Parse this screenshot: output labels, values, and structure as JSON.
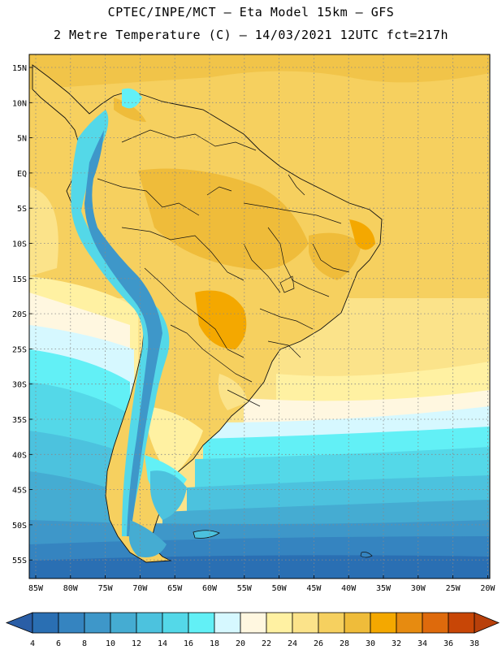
{
  "header": {
    "line1": "CPTEC/INPE/MCT –  Eta Model 15km – GFS",
    "line2": "2 Metre Temperature (C) – 14/03/2021 12UTC fct=217h"
  },
  "lat_labels": [
    "15N",
    "10N",
    "5N",
    "EQ",
    "5S",
    "10S",
    "15S",
    "20S",
    "25S",
    "30S",
    "35S",
    "40S",
    "45S",
    "50S",
    "55S"
  ],
  "lon_labels": [
    "85W",
    "80W",
    "75W",
    "70W",
    "65W",
    "60W",
    "55W",
    "50W",
    "45W",
    "40W",
    "35W",
    "30W",
    "25W",
    "20W"
  ],
  "colorbar": {
    "ticks": [
      "4",
      "6",
      "8",
      "10",
      "12",
      "14",
      "16",
      "18",
      "20",
      "22",
      "24",
      "26",
      "28",
      "30",
      "32",
      "34",
      "36",
      "38"
    ],
    "colors": [
      "#2a6fb3",
      "#3584c0",
      "#3e97c9",
      "#45acd2",
      "#4cc2de",
      "#54d8e8",
      "#62f0f6",
      "#d6f8ff",
      "#fff7e0",
      "#fff1a2",
      "#fbe38a",
      "#f6d05f",
      "#efbc3a",
      "#f4a800",
      "#e78b10",
      "#de6a0c",
      "#c84606"
    ],
    "low_color": "#2a5ea6",
    "high_color": "#b8400a"
  }
}
